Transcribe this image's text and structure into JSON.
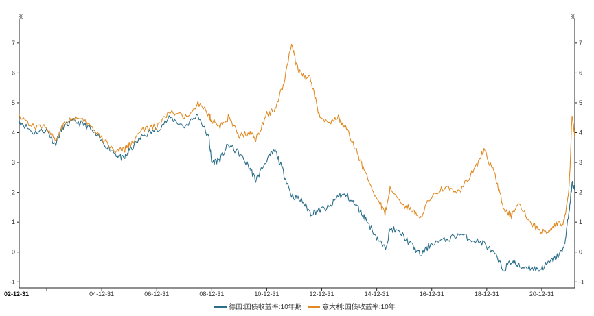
{
  "chart_data": {
    "type": "line",
    "title": "",
    "xlabel": "",
    "ylabel": "%",
    "ylabel_right": "%",
    "ylim": [
      -1.2,
      7.8
    ],
    "y_ticks": [
      -1,
      0,
      1,
      2,
      3,
      4,
      5,
      6,
      7
    ],
    "x_range": [
      2002.0,
      2022.2
    ],
    "x_ticks": [
      {
        "label": "02-12-31",
        "x": 2003.0
      },
      {
        "label": "04-12-31",
        "x": 2005.0
      },
      {
        "label": "06-12-31",
        "x": 2007.0
      },
      {
        "label": "08-12-31",
        "x": 2009.0
      },
      {
        "label": "10-12-31",
        "x": 2011.0
      },
      {
        "label": "12-12-31",
        "x": 2013.0
      },
      {
        "label": "14-12-31",
        "x": 2015.0
      },
      {
        "label": "16-12-31",
        "x": 2017.0
      },
      {
        "label": "18-12-31",
        "x": 2019.0
      },
      {
        "label": "20-12-31",
        "x": 2021.0
      }
    ],
    "grid": false,
    "legend_position": "bottom",
    "series": [
      {
        "name": "德国:国债收益率:10年期",
        "color": "#2b6e8a",
        "points": [
          [
            2002.0,
            4.4
          ],
          [
            2002.5,
            4.0
          ],
          [
            2003.0,
            4.1
          ],
          [
            2003.3,
            3.6
          ],
          [
            2003.6,
            4.2
          ],
          [
            2004.0,
            4.4
          ],
          [
            2004.5,
            4.2
          ],
          [
            2005.0,
            3.7
          ],
          [
            2005.5,
            3.3
          ],
          [
            2005.8,
            3.1
          ],
          [
            2006.0,
            3.4
          ],
          [
            2006.5,
            3.9
          ],
          [
            2007.0,
            4.1
          ],
          [
            2007.5,
            4.5
          ],
          [
            2008.0,
            4.2
          ],
          [
            2008.5,
            4.6
          ],
          [
            2008.9,
            3.8
          ],
          [
            2009.0,
            3.0
          ],
          [
            2009.3,
            3.1
          ],
          [
            2009.6,
            3.6
          ],
          [
            2010.0,
            3.3
          ],
          [
            2010.4,
            2.8
          ],
          [
            2010.6,
            2.4
          ],
          [
            2011.0,
            3.1
          ],
          [
            2011.3,
            3.4
          ],
          [
            2011.6,
            2.7
          ],
          [
            2011.9,
            1.9
          ],
          [
            2012.3,
            1.7
          ],
          [
            2012.6,
            1.3
          ],
          [
            2012.9,
            1.4
          ],
          [
            2013.3,
            1.5
          ],
          [
            2013.6,
            1.9
          ],
          [
            2013.9,
            1.9
          ],
          [
            2014.3,
            1.5
          ],
          [
            2014.6,
            1.1
          ],
          [
            2015.0,
            0.5
          ],
          [
            2015.3,
            0.1
          ],
          [
            2015.5,
            0.8
          ],
          [
            2015.9,
            0.6
          ],
          [
            2016.3,
            0.2
          ],
          [
            2016.6,
            -0.1
          ],
          [
            2017.0,
            0.3
          ],
          [
            2017.5,
            0.4
          ],
          [
            2018.0,
            0.6
          ],
          [
            2018.5,
            0.4
          ],
          [
            2018.9,
            0.3
          ],
          [
            2019.3,
            -0.1
          ],
          [
            2019.6,
            -0.6
          ],
          [
            2019.9,
            -0.3
          ],
          [
            2020.2,
            -0.5
          ],
          [
            2020.5,
            -0.5
          ],
          [
            2020.9,
            -0.6
          ],
          [
            2021.2,
            -0.4
          ],
          [
            2021.5,
            -0.2
          ],
          [
            2021.8,
            0.1
          ],
          [
            2022.0,
            1.4
          ],
          [
            2022.1,
            2.3
          ],
          [
            2022.2,
            2.1
          ]
        ]
      },
      {
        "name": "意大利:国债收益率:10年",
        "color": "#e08a24",
        "points": [
          [
            2002.0,
            4.6
          ],
          [
            2002.5,
            4.2
          ],
          [
            2003.0,
            4.2
          ],
          [
            2003.3,
            3.7
          ],
          [
            2003.6,
            4.3
          ],
          [
            2004.0,
            4.5
          ],
          [
            2004.5,
            4.3
          ],
          [
            2005.0,
            3.8
          ],
          [
            2005.5,
            3.4
          ],
          [
            2005.8,
            3.4
          ],
          [
            2006.0,
            3.6
          ],
          [
            2006.5,
            4.1
          ],
          [
            2007.0,
            4.2
          ],
          [
            2007.5,
            4.7
          ],
          [
            2008.0,
            4.5
          ],
          [
            2008.5,
            5.0
          ],
          [
            2008.9,
            4.6
          ],
          [
            2009.0,
            4.4
          ],
          [
            2009.3,
            4.2
          ],
          [
            2009.6,
            4.5
          ],
          [
            2010.0,
            3.9
          ],
          [
            2010.4,
            4.0
          ],
          [
            2010.6,
            3.8
          ],
          [
            2011.0,
            4.6
          ],
          [
            2011.3,
            4.8
          ],
          [
            2011.6,
            5.6
          ],
          [
            2011.9,
            7.0
          ],
          [
            2012.1,
            6.2
          ],
          [
            2012.3,
            5.9
          ],
          [
            2012.6,
            5.8
          ],
          [
            2012.9,
            4.6
          ],
          [
            2013.3,
            4.3
          ],
          [
            2013.6,
            4.5
          ],
          [
            2013.9,
            4.1
          ],
          [
            2014.3,
            3.3
          ],
          [
            2014.6,
            2.6
          ],
          [
            2015.0,
            1.8
          ],
          [
            2015.3,
            1.3
          ],
          [
            2015.5,
            2.2
          ],
          [
            2015.9,
            1.6
          ],
          [
            2016.3,
            1.4
          ],
          [
            2016.6,
            1.2
          ],
          [
            2017.0,
            1.9
          ],
          [
            2017.5,
            2.2
          ],
          [
            2018.0,
            2.0
          ],
          [
            2018.5,
            2.7
          ],
          [
            2018.9,
            3.4
          ],
          [
            2019.3,
            2.6
          ],
          [
            2019.6,
            1.5
          ],
          [
            2019.9,
            1.2
          ],
          [
            2020.2,
            1.6
          ],
          [
            2020.5,
            1.1
          ],
          [
            2020.9,
            0.7
          ],
          [
            2021.2,
            0.7
          ],
          [
            2021.5,
            0.9
          ],
          [
            2021.8,
            1.0
          ],
          [
            2022.0,
            2.2
          ],
          [
            2022.1,
            4.6
          ],
          [
            2022.2,
            3.9
          ]
        ]
      }
    ]
  }
}
